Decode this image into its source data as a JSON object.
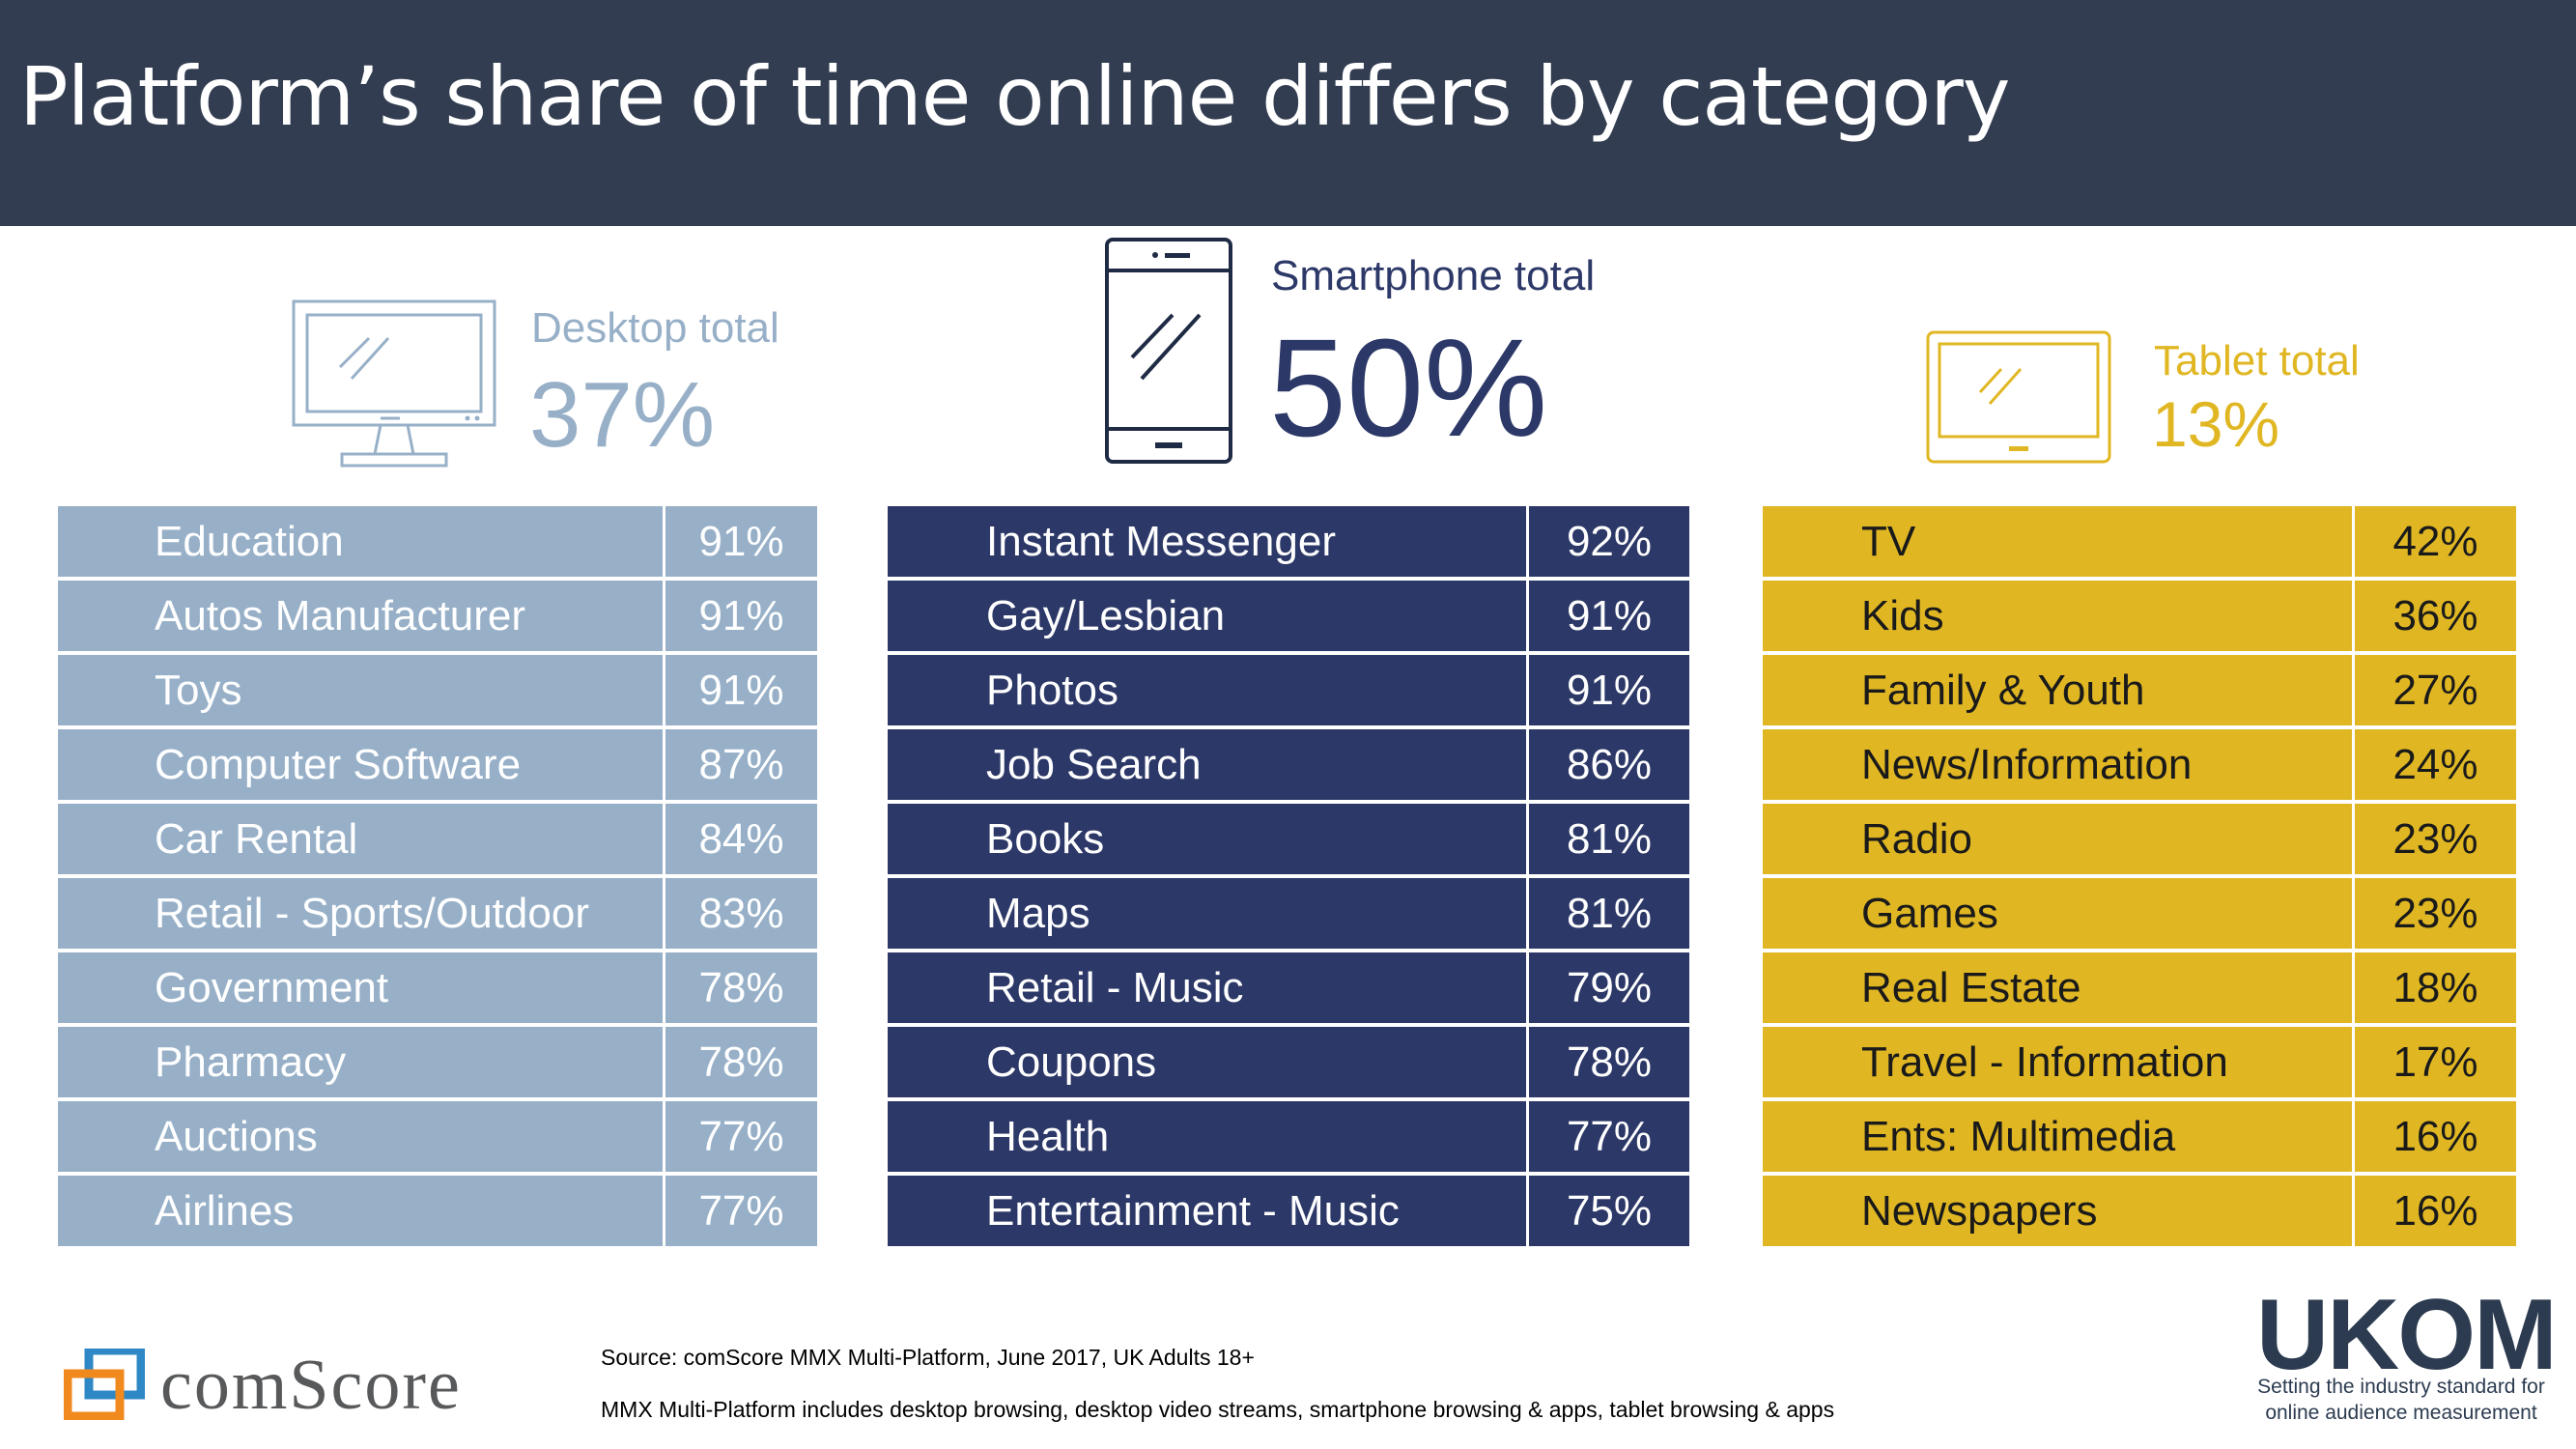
{
  "header": {
    "title": "Platform’s share of time online differs by category"
  },
  "colors": {
    "header_bg": "#333d51",
    "desktop": "#97b0c8",
    "smartphone": "#2c3867",
    "tablet": "#e0b723",
    "comscore_orange": "#f08a1e",
    "comscore_blue": "#2f88c6",
    "ukom_navy": "#2c3b50"
  },
  "desktop": {
    "label": "Desktop total",
    "total": "37%",
    "icon": "desktop-monitor-icon",
    "rows": [
      {
        "category": "Education",
        "share": "91%"
      },
      {
        "category": "Autos Manufacturer",
        "share": "91%"
      },
      {
        "category": "Toys",
        "share": "91%"
      },
      {
        "category": "Computer Software",
        "share": "87%"
      },
      {
        "category": "Car Rental",
        "share": "84%"
      },
      {
        "category": "Retail - Sports/Outdoor",
        "share": "83%"
      },
      {
        "category": "Government",
        "share": "78%"
      },
      {
        "category": "Pharmacy",
        "share": "78%"
      },
      {
        "category": "Auctions",
        "share": "77%"
      },
      {
        "category": "Airlines",
        "share": "77%"
      }
    ]
  },
  "smartphone": {
    "label": "Smartphone total",
    "total": "50%",
    "icon": "smartphone-icon",
    "rows": [
      {
        "category": "Instant Messenger",
        "share": "92%"
      },
      {
        "category": "Gay/Lesbian",
        "share": "91%"
      },
      {
        "category": "Photos",
        "share": "91%"
      },
      {
        "category": "Job Search",
        "share": "86%"
      },
      {
        "category": "Books",
        "share": "81%"
      },
      {
        "category": "Maps",
        "share": "81%"
      },
      {
        "category": "Retail - Music",
        "share": "79%"
      },
      {
        "category": "Coupons",
        "share": "78%"
      },
      {
        "category": "Health",
        "share": "77%"
      },
      {
        "category": "Entertainment - Music",
        "share": "75%"
      }
    ]
  },
  "tablet": {
    "label": "Tablet total",
    "total": "13%",
    "icon": "tablet-icon",
    "rows": [
      {
        "category": "TV",
        "share": "42%"
      },
      {
        "category": "Kids",
        "share": "36%"
      },
      {
        "category": "Family & Youth",
        "share": "27%"
      },
      {
        "category": "News/Information",
        "share": "24%"
      },
      {
        "category": "Radio",
        "share": "23%"
      },
      {
        "category": "Games",
        "share": "23%"
      },
      {
        "category": "Real Estate",
        "share": "18%"
      },
      {
        "category": "Travel - Information",
        "share": "17%"
      },
      {
        "category": "Ents: Multimedia",
        "share": "16%"
      },
      {
        "category": "Newspapers",
        "share": "16%"
      }
    ]
  },
  "footer": {
    "source": "Source: comScore MMX Multi-Platform, June 2017, UK Adults 18+",
    "note": "MMX Multi-Platform includes desktop browsing, desktop video streams, smartphone browsing & apps, tablet browsing & apps",
    "comscore_logo_text": "comScore",
    "ukom_logo_text": "UKOM",
    "ukom_tagline_1": "Setting the industry standard for",
    "ukom_tagline_2": "online audience measurement"
  }
}
